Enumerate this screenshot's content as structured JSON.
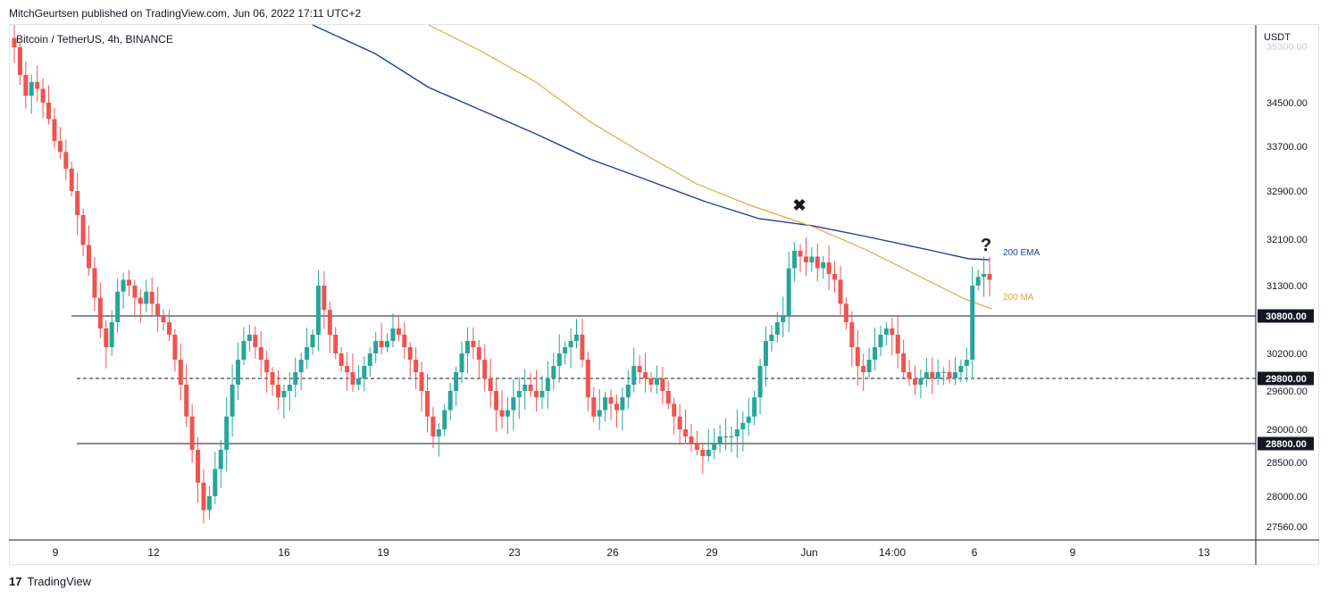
{
  "caption": "MitchGeurtsen published on TradingView.com, Jun 06, 2022 17:11 UTC+2",
  "symbol": "Bitcoin / TetherUS, 4h, BINANCE",
  "footer": "TradingView",
  "chart_data": {
    "type": "candlestick",
    "currency": "USDT",
    "y_axis_ticks": [
      34500,
      33700,
      32900,
      32100,
      31300,
      30200,
      29600,
      29000,
      28500,
      28000,
      27560
    ],
    "y_axis_top_label": "35300.00",
    "x_axis_ticks": [
      "9",
      "12",
      "16",
      "19",
      "23",
      "26",
      "29",
      "Jun",
      "14:00",
      "6",
      "9",
      "13"
    ],
    "horizontal_levels": [
      {
        "value": 30800,
        "label": "30800.00",
        "style": "solid"
      },
      {
        "value": 29800,
        "label": "29800.00",
        "style": "dashed"
      },
      {
        "value": 28800,
        "label": "28800.00",
        "style": "solid"
      }
    ],
    "series": [
      {
        "name": "200 EMA",
        "color": "#1e3f96"
      },
      {
        "name": "200 MA",
        "color": "#e8a33d"
      }
    ],
    "annotations": [
      {
        "text": "✖",
        "near": "2022-06-01"
      },
      {
        "text": "?",
        "near": "2022-06-06"
      }
    ],
    "candles_close_approx": [
      35300,
      34900,
      34600,
      34800,
      34700,
      34500,
      34200,
      33800,
      33600,
      33300,
      32900,
      32500,
      32000,
      31600,
      31100,
      30600,
      30300,
      30700,
      31200,
      31400,
      31300,
      31100,
      31000,
      31200,
      31000,
      30800,
      30700,
      30500,
      30100,
      29700,
      29200,
      28700,
      28200,
      27800,
      28000,
      28400,
      28700,
      29200,
      29700,
      30100,
      30400,
      30500,
      30300,
      30100,
      29900,
      29700,
      29500,
      29600,
      29700,
      29900,
      30100,
      30300,
      30500,
      31300,
      30900,
      30500,
      30200,
      30000,
      29900,
      29700,
      29800,
      30000,
      30200,
      30400,
      30300,
      30400,
      30600,
      30500,
      30300,
      30100,
      29900,
      29600,
      29200,
      28900,
      29000,
      29300,
      29600,
      29900,
      30200,
      30400,
      30300,
      30100,
      29800,
      29600,
      29300,
      29200,
      29300,
      29500,
      29600,
      29700,
      29600,
      29500,
      29600,
      29800,
      30000,
      30200,
      30300,
      30400,
      30500,
      30100,
      29500,
      29200,
      29300,
      29500,
      29400,
      29300,
      29500,
      29700,
      30000,
      29900,
      29800,
      29700,
      29800,
      29600,
      29400,
      29200,
      29000,
      28900,
      28800,
      28700,
      28600,
      28700,
      28800,
      28900,
      28900,
      28900,
      29000,
      29100,
      29200,
      29500,
      30000,
      30400,
      30500,
      30700,
      30800,
      31600,
      31900,
      31800,
      31700,
      31800,
      31600,
      31700,
      31500,
      31400,
      31000,
      30700,
      30300,
      30000,
      29900,
      30100,
      30300,
      30500,
      30600,
      30500,
      30200,
      29900,
      29800,
      29700,
      29800,
      29900,
      29800,
      29900,
      29900,
      29800,
      29900,
      30000,
      30100,
      31300,
      31450,
      31500,
      31400
    ]
  }
}
